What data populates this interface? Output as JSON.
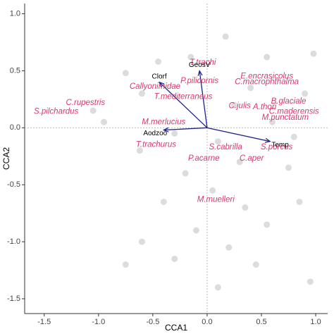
{
  "chart_data": {
    "type": "biplot",
    "xlabel": "CCA1",
    "ylabel": "CCA2",
    "xlim": [
      -1.68,
      1.11
    ],
    "ylim": [
      -1.63,
      1.09
    ],
    "xticks": [
      {
        "value": -1.5,
        "label": "-1.5"
      },
      {
        "value": -1,
        "label": "-1.0"
      },
      {
        "value": -0.5,
        "label": "-0.5"
      },
      {
        "value": 0,
        "label": "0.0"
      },
      {
        "value": 0.5,
        "label": "0.5"
      },
      {
        "value": 1,
        "label": "1.0"
      }
    ],
    "yticks": [
      {
        "value": -1.5,
        "label": "-1.5"
      },
      {
        "value": -1,
        "label": "-1.0"
      },
      {
        "value": -0.5,
        "label": "-0.5"
      },
      {
        "value": 0,
        "label": "0.0"
      },
      {
        "value": 0.5,
        "label": "0.5"
      },
      {
        "value": 1,
        "label": "1.0"
      }
    ],
    "sites": {
      "color": "#dcdcdc",
      "x": [
        -0.75,
        0.17,
        0.98,
        0.55,
        -0.45,
        -0.15,
        0.4,
        -0.6,
        -1.05,
        -0.95,
        0.25,
        0.9,
        0.6,
        0.8,
        -0.3,
        -0.62,
        0.1,
        0.3,
        -0.2,
        0.75,
        0.05,
        0.35,
        -0.4,
        0.55,
        -0.1,
        0.2,
        -0.6,
        0.45,
        -0.75,
        0.1,
        0.95,
        -0.3,
        0.85
      ],
      "y": [
        0.48,
        0.8,
        0.65,
        0.62,
        0.58,
        0.62,
        0.35,
        0.3,
        0.15,
        0.05,
        0.2,
        0.3,
        0.05,
        -0.08,
        -0.05,
        -0.2,
        -0.12,
        -0.3,
        -0.4,
        -0.35,
        -0.55,
        -0.7,
        -0.65,
        -0.85,
        -0.9,
        -1.05,
        -1.0,
        -1.2,
        -1.2,
        -1.4,
        -1.35,
        -1.15,
        -0.65
      ]
    },
    "species": {
      "color": "#d63a6a",
      "labels": [
        "T.trachi",
        "E.encrasicolus",
        "P.pilicornis",
        "C.macrophthalma",
        "Callyonimidae",
        "T.mediterraneus",
        "B.glaciale",
        "C.rupestris",
        "C.julis",
        "A.thori",
        "C.maderensis",
        "S.pilchardus",
        "M.punctatum",
        "M.merlucius",
        "T.trachurus",
        "S.cabrilla",
        "S.porcus",
        "P.acarne",
        "C.aper",
        "M.muelleri"
      ],
      "x": [
        -0.04,
        0.55,
        -0.07,
        0.55,
        -0.48,
        -0.22,
        0.75,
        -1.12,
        0.3,
        0.53,
        0.8,
        -1.39,
        0.72,
        -0.4,
        -0.47,
        0.17,
        0.64,
        -0.03,
        0.41,
        0.08
      ],
      "y": [
        0.57,
        0.45,
        0.41,
        0.4,
        0.36,
        0.27,
        0.23,
        0.22,
        0.19,
        0.18,
        0.14,
        0.14,
        0.09,
        0.05,
        -0.15,
        -0.17,
        -0.17,
        -0.27,
        -0.27,
        -0.63
      ]
    },
    "arrows": {
      "color": "#1f1f8f",
      "labels": [
        "GeosV",
        "Clorf",
        "Temp",
        "Aodzoo"
      ],
      "x": [
        -0.07,
        -0.44,
        0.58,
        -0.4
      ],
      "y": [
        0.5,
        0.4,
        -0.12,
        -0.02
      ]
    }
  }
}
